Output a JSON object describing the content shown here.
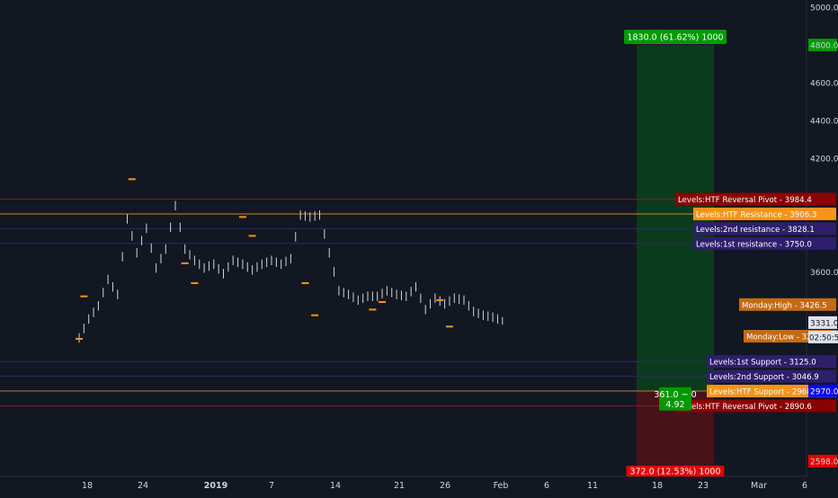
{
  "chart_data": {
    "type": "candlestick",
    "x_axis": {
      "tick_labels": [
        "18",
        "24",
        "2019",
        "7",
        "14",
        "21",
        "26",
        "Feb",
        "6",
        "11",
        "18",
        "23",
        "Mar",
        "6"
      ],
      "bold_labels": [
        "2019"
      ]
    },
    "y_axis": {
      "ylim": [
        2598,
        5000
      ],
      "tick_labels": [
        "5000.0",
        "4800.0",
        "4600.0",
        "4400.0",
        "4200.0",
        "3600.0",
        "2598.0"
      ],
      "tick_values": [
        5000,
        4800,
        4600,
        4400,
        4200,
        3600,
        2598
      ]
    },
    "price_path": [
      {
        "t": 0,
        "v": 3250
      },
      {
        "t": 2,
        "v": 3350
      },
      {
        "t": 4,
        "v": 3420
      },
      {
        "t": 6,
        "v": 3560
      },
      {
        "t": 8,
        "v": 3480
      },
      {
        "t": 10,
        "v": 3880
      },
      {
        "t": 12,
        "v": 3700
      },
      {
        "t": 14,
        "v": 3830
      },
      {
        "t": 16,
        "v": 3620
      },
      {
        "t": 18,
        "v": 3720
      },
      {
        "t": 20,
        "v": 3950
      },
      {
        "t": 22,
        "v": 3720
      },
      {
        "t": 24,
        "v": 3660
      },
      {
        "t": 26,
        "v": 3620
      },
      {
        "t": 28,
        "v": 3640
      },
      {
        "t": 30,
        "v": 3590
      },
      {
        "t": 32,
        "v": 3660
      },
      {
        "t": 34,
        "v": 3640
      },
      {
        "t": 36,
        "v": 3610
      },
      {
        "t": 38,
        "v": 3640
      },
      {
        "t": 40,
        "v": 3660
      },
      {
        "t": 42,
        "v": 3640
      },
      {
        "t": 44,
        "v": 3670
      },
      {
        "t": 46,
        "v": 3900
      },
      {
        "t": 48,
        "v": 3890
      },
      {
        "t": 50,
        "v": 3900
      },
      {
        "t": 52,
        "v": 3700
      },
      {
        "t": 54,
        "v": 3500
      },
      {
        "t": 56,
        "v": 3480
      },
      {
        "t": 58,
        "v": 3450
      },
      {
        "t": 60,
        "v": 3470
      },
      {
        "t": 62,
        "v": 3470
      },
      {
        "t": 64,
        "v": 3500
      },
      {
        "t": 66,
        "v": 3480
      },
      {
        "t": 68,
        "v": 3470
      },
      {
        "t": 70,
        "v": 3520
      },
      {
        "t": 72,
        "v": 3400
      },
      {
        "t": 74,
        "v": 3460
      },
      {
        "t": 76,
        "v": 3430
      },
      {
        "t": 78,
        "v": 3460
      },
      {
        "t": 80,
        "v": 3450
      },
      {
        "t": 82,
        "v": 3390
      },
      {
        "t": 84,
        "v": 3370
      },
      {
        "t": 86,
        "v": 3360
      },
      {
        "t": 88,
        "v": 3340
      }
    ],
    "marker_dates": [
      {
        "t": 0,
        "v": 3245,
        "dir": "low"
      },
      {
        "t": 1,
        "v": 3470,
        "dir": "high"
      },
      {
        "t": 11,
        "v": 4090,
        "dir": "high"
      },
      {
        "t": 22,
        "v": 3645,
        "dir": "high"
      },
      {
        "t": 24,
        "v": 3540,
        "dir": "low"
      },
      {
        "t": 34,
        "v": 3890,
        "dir": "high"
      },
      {
        "t": 36,
        "v": 3790,
        "dir": "low"
      },
      {
        "t": 47,
        "v": 3540,
        "dir": "high"
      },
      {
        "t": 49,
        "v": 3370,
        "dir": "low"
      },
      {
        "t": 61,
        "v": 3400,
        "dir": "low"
      },
      {
        "t": 63,
        "v": 3440,
        "dir": "high"
      },
      {
        "t": 75,
        "v": 3450,
        "dir": "high"
      },
      {
        "t": 77,
        "v": 3310,
        "dir": "low"
      }
    ],
    "levels": [
      {
        "label": "Levels:HTF Reversal Pivot",
        "value": "3984.4",
        "color": "#8b0000",
        "line": "#7a2020"
      },
      {
        "label": "Levels:HTF Resistance",
        "value": "3906.3",
        "color": "#f7931a",
        "line": "#c8871a"
      },
      {
        "label": "Levels:2nd resistance",
        "value": "3828.1",
        "color": "#2e1f6b",
        "line": "#2d2a63"
      },
      {
        "label": "Levels:1st resistance",
        "value": "3750.0",
        "color": "#2e1f6b",
        "line": "#2d2a63"
      },
      {
        "label": "Monday:High",
        "value": "3426.5",
        "color": "#c56a12",
        "line": null
      },
      {
        "label": "Monday:Low",
        "value": "3259.0",
        "color": "#c56a12",
        "line": null
      },
      {
        "label": "Levels:1st Support",
        "value": "3125.0",
        "color": "#2e1f6b",
        "line": "#2d2a63"
      },
      {
        "label": "Levels:2nd Support",
        "value": "3046.9",
        "color": "#2e1f6b",
        "line": "#2d2a63"
      },
      {
        "label": "Levels:HTF Support",
        "value": "2968.8",
        "color": "#f7931a",
        "line": "#c8871a"
      },
      {
        "label": "Levels:HTF Reversal Pivot",
        "value": "2890.6",
        "color": "#8b0000",
        "line": "#7a2020"
      }
    ],
    "price_badges": [
      {
        "value": "2970.0",
        "color": "#0000ff"
      },
      {
        "value": "3331.0",
        "color": "#e0e3eb"
      },
      {
        "value": "02:50:58",
        "color": "#e0e3eb"
      }
    ],
    "position_tool": {
      "target_label": "1830.0 (61.62%) 1000",
      "stop_label": "372.0 (12.53%) 1000",
      "status_line1": "361.0 ~ 0",
      "status_line2": "4.92",
      "target_value": "4800.0",
      "entry_value": 2970,
      "target_color": "#009900",
      "stop_color": "#e50000"
    }
  }
}
